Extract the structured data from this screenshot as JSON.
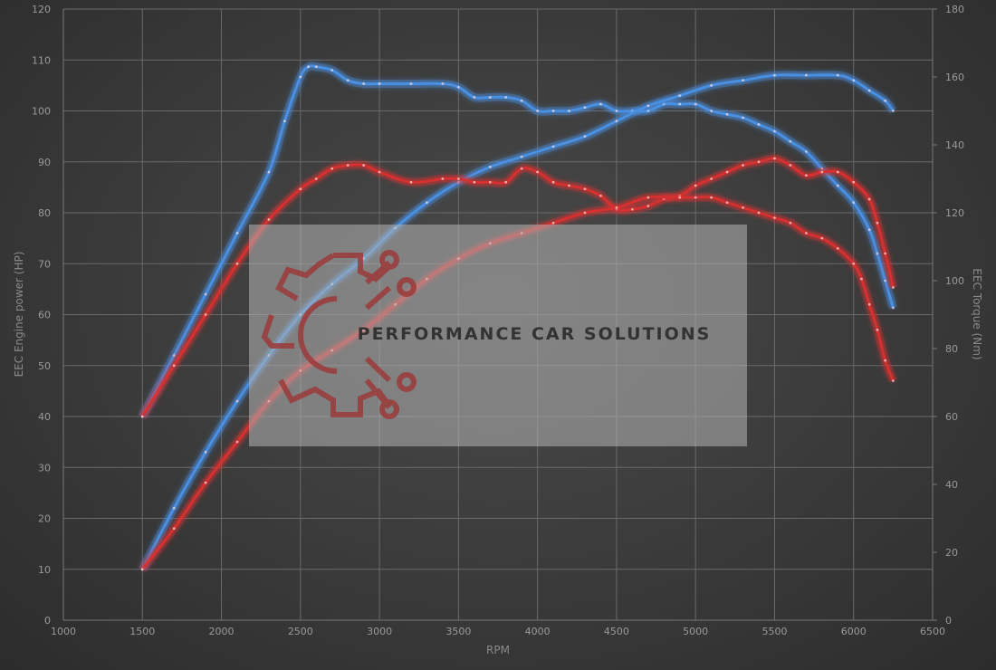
{
  "chart_data": {
    "type": "line",
    "xlabel": "RPM",
    "ylabel_left": "EEC Engine power (HP)",
    "ylabel_right": "EEC Torque (Nm)",
    "xlim": [
      1000,
      6500
    ],
    "ylim_left": [
      0,
      120
    ],
    "ylim_right": [
      0,
      180
    ],
    "x_ticks": [
      1000,
      1500,
      2000,
      2500,
      3000,
      3500,
      4000,
      4500,
      5000,
      5500,
      6000,
      6500
    ],
    "y_left_ticks": [
      0,
      10,
      20,
      30,
      40,
      50,
      60,
      70,
      80,
      90,
      100,
      110,
      120
    ],
    "y_right_ticks": [
      0,
      20,
      40,
      60,
      80,
      100,
      120,
      140,
      160,
      180
    ],
    "grid": true,
    "series": [
      {
        "color": "#4a90e2",
        "axis": "right",
        "x": [
          1500,
          1700,
          1900,
          2100,
          2300,
          2400,
          2500,
          2550,
          2600,
          2700,
          2800,
          2900,
          3000,
          3200,
          3400,
          3500,
          3600,
          3700,
          3800,
          3900,
          4000,
          4100,
          4200,
          4300,
          4400,
          4500,
          4600,
          4700,
          4800,
          4900,
          5000,
          5100,
          5200,
          5300,
          5400,
          5500,
          5600,
          5700,
          5800,
          5900,
          6000,
          6100,
          6150,
          6200,
          6250
        ],
        "y": [
          60,
          78,
          96,
          114,
          132,
          147,
          160,
          163,
          163,
          162,
          159,
          158,
          158,
          158,
          158,
          157,
          154,
          154,
          154,
          153,
          150,
          150,
          150,
          151,
          152,
          150,
          150,
          150,
          152,
          152,
          152,
          150,
          149,
          148,
          146,
          144,
          141,
          138,
          133,
          128,
          123,
          115,
          108,
          100,
          92
        ]
      },
      {
        "color": "#4a90e2",
        "axis": "left",
        "x": [
          1500,
          1700,
          1900,
          2100,
          2300,
          2500,
          2700,
          2900,
          3100,
          3300,
          3500,
          3700,
          3900,
          4100,
          4300,
          4500,
          4700,
          4900,
          5100,
          5300,
          5500,
          5700,
          5900,
          6000,
          6100,
          6200,
          6250
        ],
        "y": [
          10,
          22,
          33,
          43,
          52,
          60,
          66,
          71,
          77,
          82,
          86,
          89,
          91,
          93,
          95,
          98,
          101,
          103,
          105,
          106,
          107,
          107,
          107,
          106,
          104,
          102,
          100
        ]
      },
      {
        "color": "#d63030",
        "axis": "right",
        "x": [
          1500,
          1700,
          1900,
          2100,
          2300,
          2500,
          2600,
          2700,
          2800,
          2900,
          3000,
          3200,
          3400,
          3500,
          3600,
          3700,
          3800,
          3900,
          4000,
          4100,
          4200,
          4300,
          4400,
          4500,
          4600,
          4700,
          4800,
          4900,
          5000,
          5100,
          5200,
          5300,
          5400,
          5500,
          5600,
          5700,
          5800,
          5900,
          6000,
          6100,
          6150,
          6200,
          6250
        ],
        "y": [
          60,
          75,
          90,
          105,
          118,
          127,
          130,
          133,
          134,
          134,
          132,
          129,
          130,
          130,
          129,
          129,
          129,
          133,
          132,
          129,
          128,
          127,
          125,
          121,
          121,
          122,
          124,
          125,
          128,
          130,
          132,
          134,
          135,
          136,
          134,
          131,
          132,
          132,
          129,
          124,
          117,
          108,
          98
        ]
      },
      {
        "color": "#d63030",
        "axis": "left",
        "x": [
          1500,
          1700,
          1900,
          2100,
          2300,
          2500,
          2700,
          2900,
          3100,
          3300,
          3500,
          3700,
          3900,
          4100,
          4300,
          4500,
          4700,
          4900,
          5000,
          5100,
          5200,
          5300,
          5400,
          5500,
          5600,
          5700,
          5800,
          5900,
          6000,
          6050,
          6100,
          6150,
          6200,
          6250
        ],
        "y": [
          10,
          18,
          27,
          35,
          43,
          49,
          53,
          57,
          62,
          67,
          71,
          74,
          76,
          78,
          80,
          81,
          83,
          83,
          83,
          83,
          82,
          81,
          80,
          79,
          78,
          76,
          75,
          73,
          70,
          67,
          62,
          57,
          51,
          47
        ]
      }
    ]
  },
  "watermark": {
    "text": "PERFORMANCE CAR SOLUTIONS",
    "logo_icon": "gear-circuit-logo-icon"
  }
}
